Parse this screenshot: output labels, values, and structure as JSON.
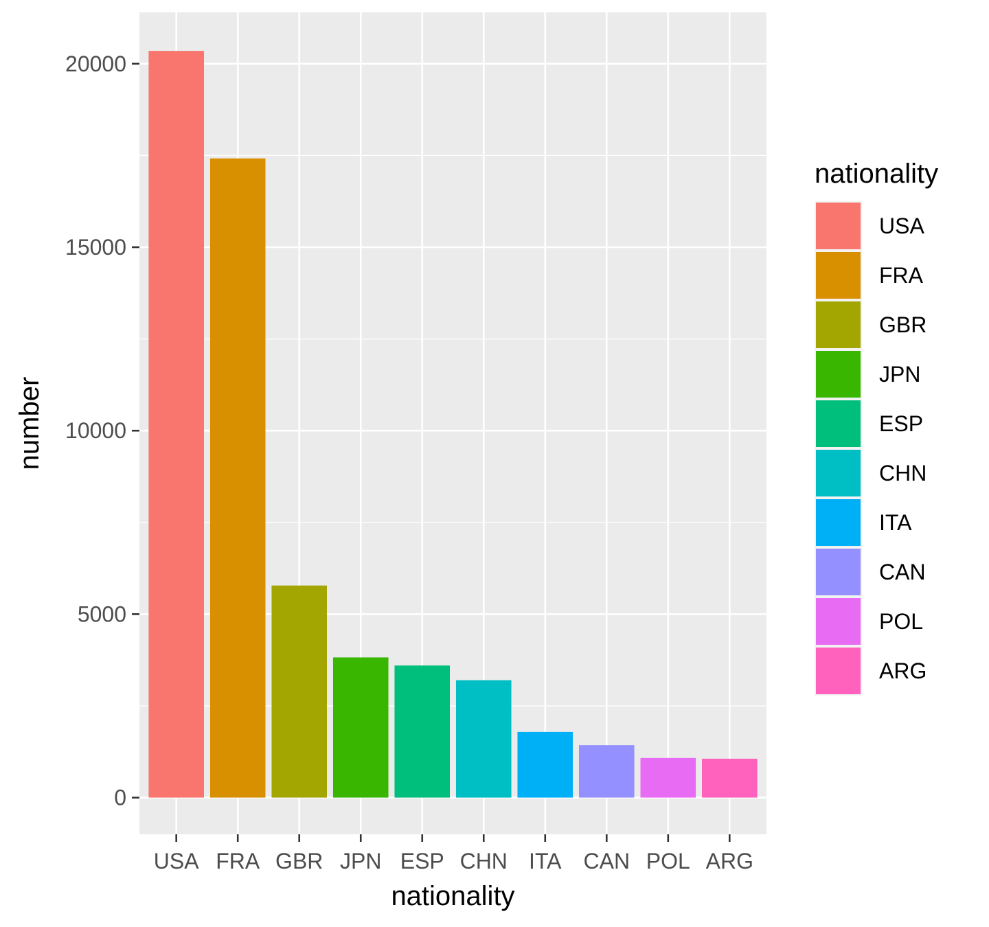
{
  "chart_data": {
    "type": "bar",
    "categories": [
      "USA",
      "FRA",
      "GBR",
      "JPN",
      "ESP",
      "CHN",
      "ITA",
      "CAN",
      "POL",
      "ARG"
    ],
    "values": [
      20350,
      17420,
      5780,
      3820,
      3600,
      3200,
      1790,
      1430,
      1080,
      1060
    ],
    "colors": [
      "#F8766D",
      "#D89000",
      "#A3A500",
      "#39B600",
      "#00BF7D",
      "#00BFC4",
      "#00B0F6",
      "#9590FF",
      "#E76BF3",
      "#FF62BC"
    ],
    "xlabel": "nationality",
    "ylabel": "number",
    "ylim": [
      -1000,
      21400
    ],
    "yticks": [
      0,
      5000,
      10000,
      15000,
      20000
    ],
    "ytick_labels": [
      "0",
      "5000",
      "10000",
      "15000",
      "20000"
    ],
    "y_minor_ticks": [
      2500,
      7500,
      12500,
      17500
    ],
    "grid": true,
    "panel_background": "#EBEBEB",
    "gridline_color": "#FFFFFF",
    "legend": {
      "title": "nationality",
      "position": "right",
      "entries": [
        "USA",
        "FRA",
        "GBR",
        "JPN",
        "ESP",
        "CHN",
        "ITA",
        "CAN",
        "POL",
        "ARG"
      ]
    }
  }
}
